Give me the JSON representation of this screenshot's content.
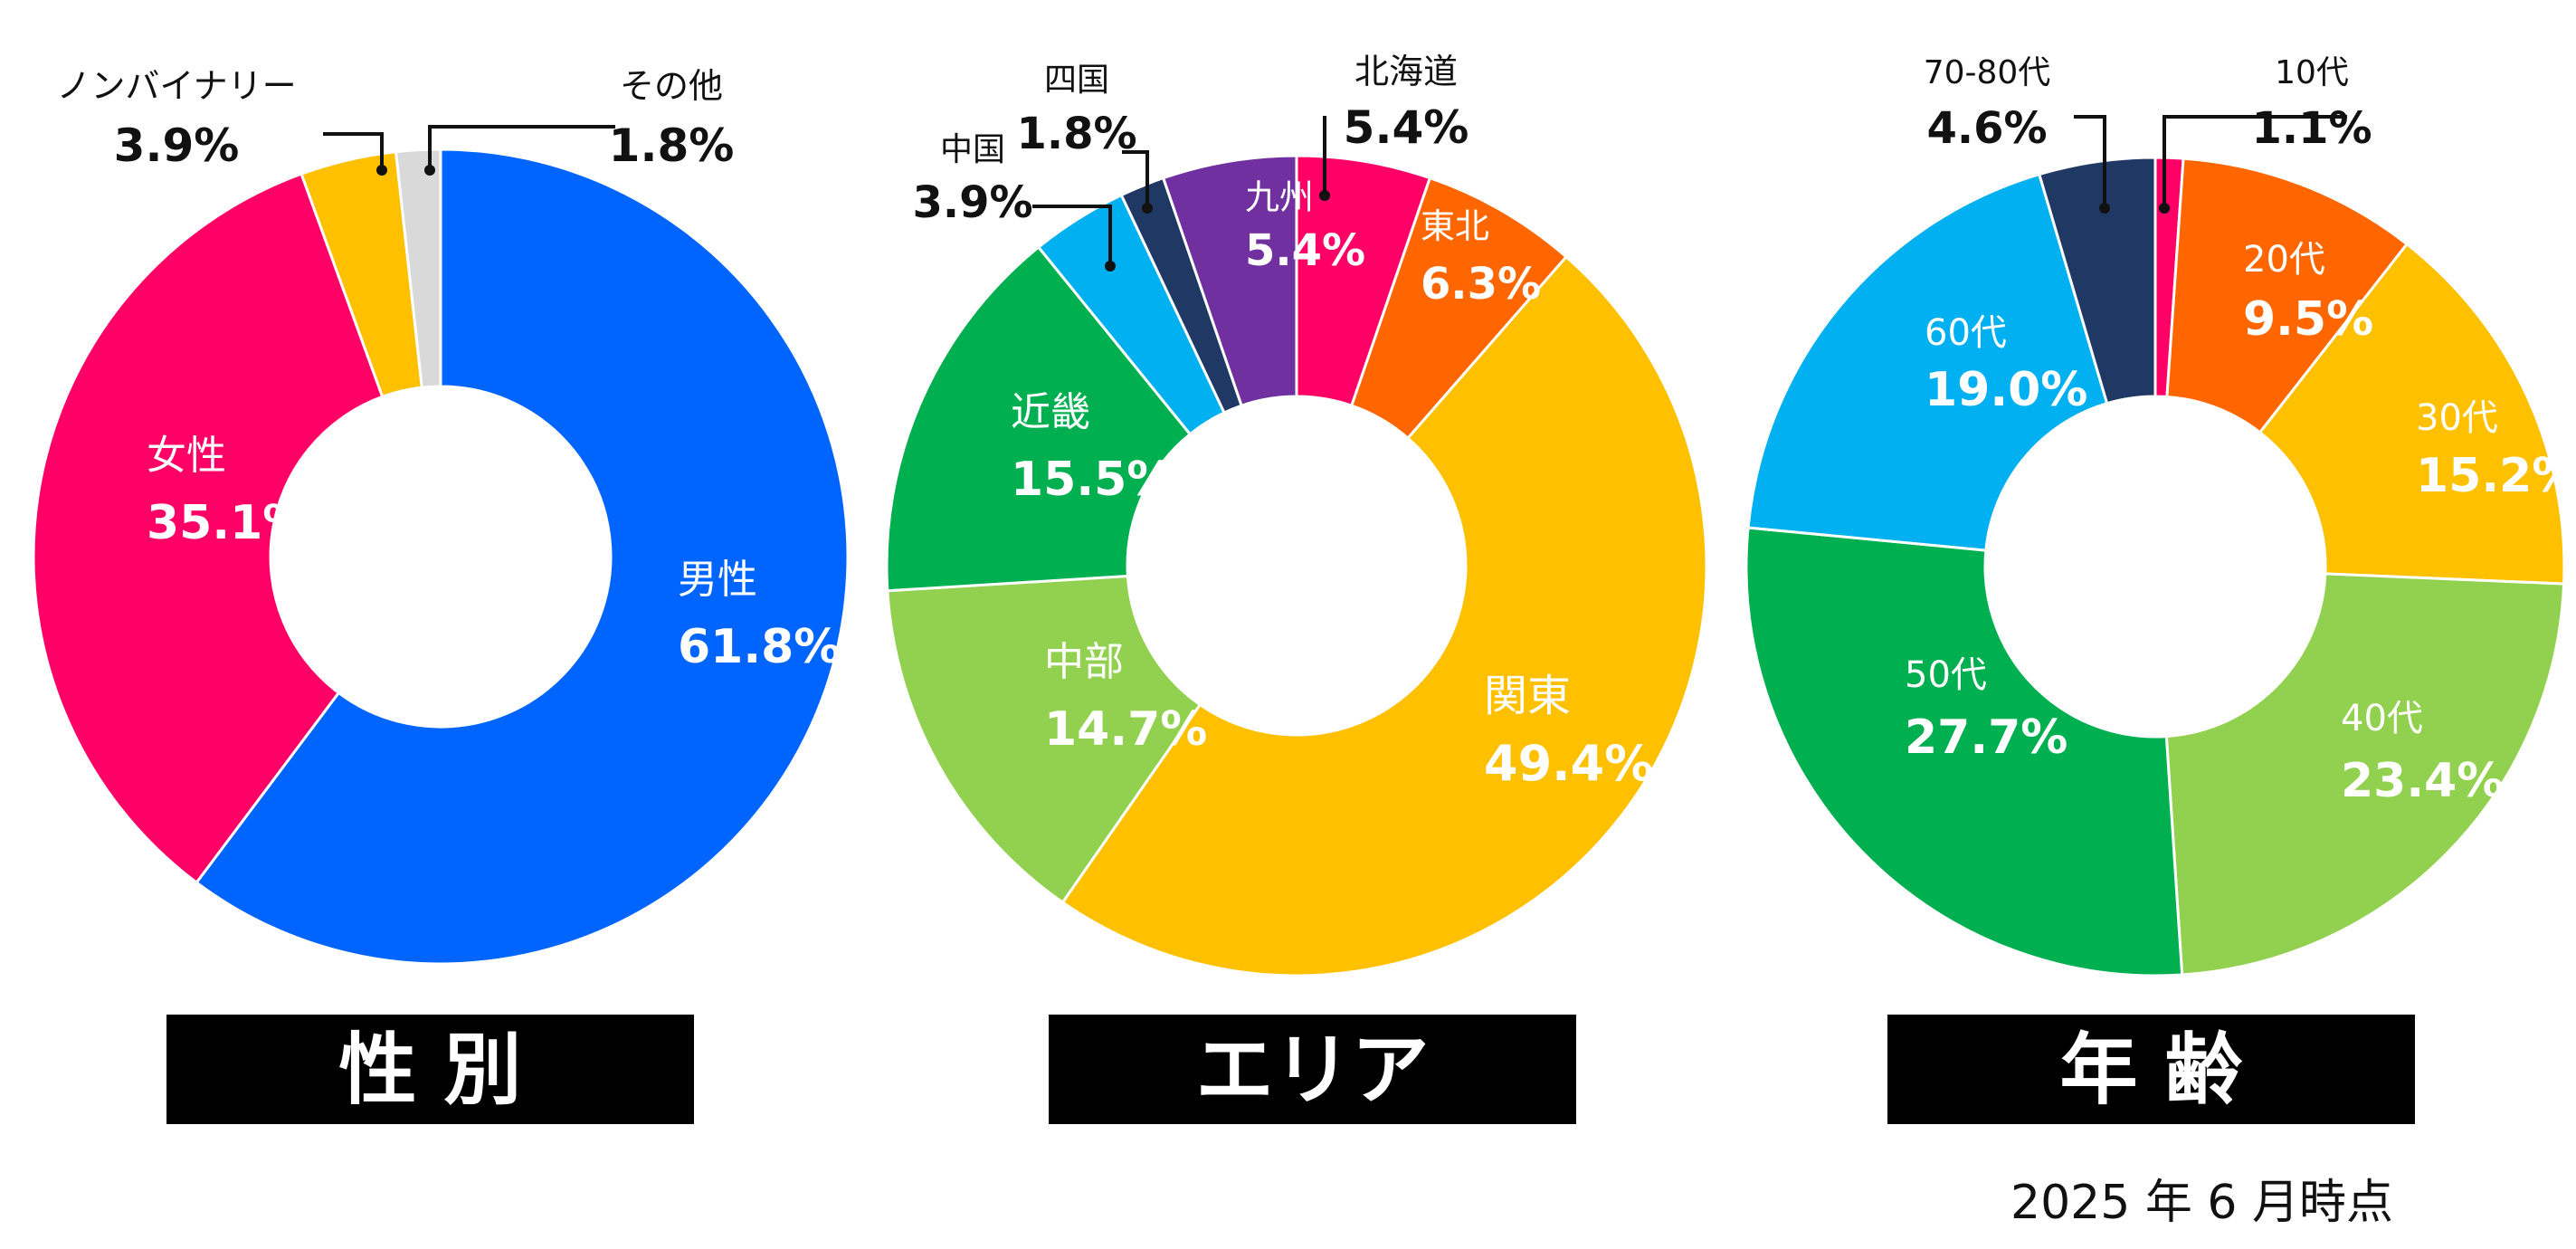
{
  "footnote": "2025 年 6 月時点",
  "chart_data": [
    {
      "type": "pie",
      "variant": "donut",
      "title": "性 別",
      "slices": [
        {
          "label": "男性",
          "value": 61.8,
          "display": "61.8%",
          "color": "#0064FF"
        },
        {
          "label": "女性",
          "value": 35.1,
          "display": "35.1%",
          "color": "#FF0066"
        },
        {
          "label": "ノンバイナリー",
          "value": 3.9,
          "display": "3.9%",
          "color": "#FFC000"
        },
        {
          "label": "その他",
          "value": 1.8,
          "display": "1.8%",
          "color": "#D9D9D9"
        }
      ]
    },
    {
      "type": "pie",
      "variant": "donut",
      "title": "エリア",
      "slices": [
        {
          "label": "北海道",
          "value": 5.4,
          "display": "5.4%",
          "color": "#FF0066"
        },
        {
          "label": "東北",
          "value": 6.3,
          "display": "6.3%",
          "color": "#FF6600"
        },
        {
          "label": "関東",
          "value": 49.4,
          "display": "49.4%",
          "color": "#FFC000"
        },
        {
          "label": "中部",
          "value": 14.7,
          "display": "14.7%",
          "color": "#92D050"
        },
        {
          "label": "近畿",
          "value": 15.5,
          "display": "15.5%",
          "color": "#00B050"
        },
        {
          "label": "中国",
          "value": 3.9,
          "display": "3.9%",
          "color": "#00B0F0"
        },
        {
          "label": "四国",
          "value": 1.8,
          "display": "1.8%",
          "color": "#203864"
        },
        {
          "label": "九州",
          "value": 5.4,
          "display": "5.4%",
          "color": "#7030A0"
        }
      ]
    },
    {
      "type": "pie",
      "variant": "donut",
      "title": "年 齢",
      "slices": [
        {
          "label": "10代",
          "value": 1.1,
          "display": "1.1%",
          "color": "#FF0066"
        },
        {
          "label": "20代",
          "value": 9.5,
          "display": "9.5%",
          "color": "#FF6600"
        },
        {
          "label": "30代",
          "value": 15.2,
          "display": "15.2%",
          "color": "#FFC000"
        },
        {
          "label": "40代",
          "value": 23.4,
          "display": "23.4%",
          "color": "#92D050"
        },
        {
          "label": "50代",
          "value": 27.7,
          "display": "27.7%",
          "color": "#00B050"
        },
        {
          "label": "60代",
          "value": 19.0,
          "display": "19.0%",
          "color": "#00B0F0"
        },
        {
          "label": "70-80代",
          "value": 4.6,
          "display": "4.6%",
          "color": "#203864"
        }
      ]
    }
  ]
}
